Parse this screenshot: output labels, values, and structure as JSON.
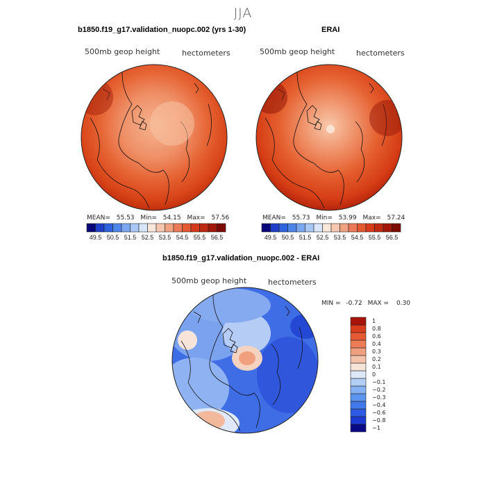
{
  "figure": {
    "season_title": "JJA"
  },
  "panels": [
    {
      "id": "model",
      "title": "b1850.f19_g17.validation_nuopc.002 (yrs 1-30)",
      "field_label": "500mb geop height",
      "units_label": "hectometers",
      "stats": {
        "mean_label": "MEAN=",
        "mean": "55.53",
        "min_label": "Min=",
        "min": "54.15",
        "max_label": "Max=",
        "max": "57.56"
      }
    },
    {
      "id": "erai",
      "title": "ERAI",
      "field_label": "500mb geop height",
      "units_label": "hectometers",
      "stats": {
        "mean_label": "MEAN=",
        "mean": "55.73",
        "min_label": "Min=",
        "min": "53.99",
        "max_label": "Max=",
        "max": "57.24"
      }
    },
    {
      "id": "diff",
      "title": "b1850.f19_g17.validation_nuopc.002 - ERAI",
      "field_label": "500mb geop height",
      "units_label": "hectometers",
      "stats": {
        "min_label": "MIN =",
        "min": "-0.72",
        "max_label": "MAX =",
        "max": "0.30"
      }
    }
  ],
  "colorbar_abs": {
    "colors": [
      "#08087a",
      "#1f3fc7",
      "#2e63dd",
      "#4d85e9",
      "#7aa7ef",
      "#a9c7f4",
      "#d7e6f8",
      "#f8e6da",
      "#f5c7ae",
      "#f1a282",
      "#ec7a58",
      "#e45a32",
      "#d63c1c",
      "#bf2a12",
      "#a01708",
      "#7a0a02"
    ],
    "labels": [
      "49.5",
      "50.5",
      "51.5",
      "52.5",
      "53.5",
      "54.5",
      "55.5",
      "56.5"
    ]
  },
  "colorbar_diff": {
    "colors": [
      "#0a0a86",
      "#1b3ad0",
      "#2f5be4",
      "#4179eb",
      "#5c95f0",
      "#86b1f3",
      "#b4cff6",
      "#dde9f9",
      "#f8e3d8",
      "#f4c2ab",
      "#f0a07f",
      "#ec7c56",
      "#e65a33",
      "#d93d1c",
      "#a81408"
    ],
    "labels": [
      "1",
      "0.8",
      "0.6",
      "0.4",
      "0.3",
      "0.2",
      "0.1",
      "0",
      "−0.1",
      "−0.2",
      "−0.3",
      "−0.4",
      "−0.6",
      "−0.8",
      "−1"
    ]
  }
}
